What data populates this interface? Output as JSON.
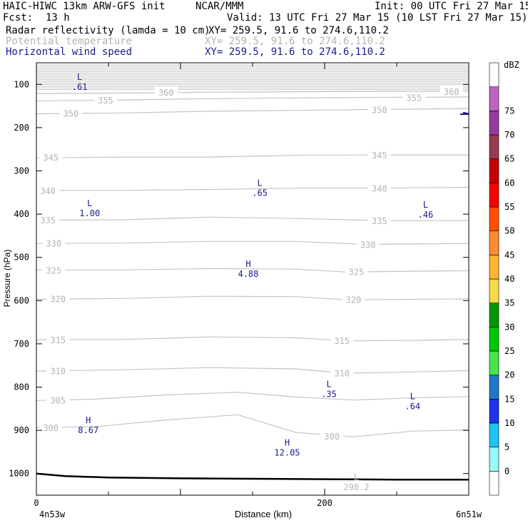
{
  "header": {
    "model": "HAIC-HIWC 13km ARW-GFS init",
    "org": "NCAR/MMM",
    "init": "Init: 00 UTC Fri 27 Mar 15",
    "fcst_label": "Fcst:",
    "fcst_value": "13 h",
    "valid": "Valid: 13 UTC Fri 27 Mar 15 (10 LST Fri 27 Mar 15)",
    "fields": [
      {
        "name": "Radar reflectivity (lamda = 10 cm)",
        "xy": "XY= 259.5, 91.6 to 274.6,110.2",
        "color": "#000000"
      },
      {
        "name": "Potential temperature",
        "xy": "XY= 259.5, 91.6 to 274.6,110.2",
        "color": "#b4b4b4"
      },
      {
        "name": "Horizontal wind speed",
        "xy": "XY= 259.5, 91.6 to 274.6,110.2",
        "color": "#1a1a8c"
      }
    ]
  },
  "chart_data": {
    "type": "cross-section contour",
    "xlabel": "Distance (km)",
    "ylabel": "Pressure (hPa)",
    "xlim": [
      0,
      300
    ],
    "ylim": [
      1050,
      50
    ],
    "x_ticks": [
      0,
      200
    ],
    "y_ticks": [
      100,
      200,
      300,
      400,
      500,
      600,
      700,
      800,
      900,
      1000
    ],
    "x_start_label": "4n53w",
    "x_end_label": "6n51w",
    "terrain_surface": [
      [
        0,
        1000
      ],
      [
        20,
        1006
      ],
      [
        50,
        1009
      ],
      [
        100,
        1011
      ],
      [
        150,
        1012
      ],
      [
        200,
        1013
      ],
      [
        250,
        1014
      ],
      [
        300,
        1014
      ]
    ],
    "theta_contours": [
      {
        "label": "300",
        "points": [
          [
            0,
            893
          ],
          [
            40,
            892
          ],
          [
            90,
            876
          ],
          [
            140,
            864
          ],
          [
            180,
            905
          ],
          [
            220,
            915
          ],
          [
            260,
            902
          ],
          [
            300,
            899
          ]
        ],
        "label_at": [
          [
            10,
            893
          ],
          [
            205,
            913
          ]
        ]
      },
      {
        "label": "305",
        "points": [
          [
            0,
            831
          ],
          [
            40,
            828
          ],
          [
            90,
            818
          ],
          [
            140,
            812
          ],
          [
            180,
            823
          ],
          [
            220,
            830
          ],
          [
            260,
            825
          ],
          [
            300,
            822
          ]
        ],
        "label_at": [
          [
            15,
            830
          ]
        ]
      },
      {
        "label": "310",
        "points": [
          [
            0,
            763
          ],
          [
            60,
            760
          ],
          [
            120,
            755
          ],
          [
            180,
            758
          ],
          [
            215,
            768
          ],
          [
            260,
            765
          ],
          [
            300,
            762
          ]
        ],
        "label_at": [
          [
            15,
            762
          ],
          [
            212,
            767
          ]
        ]
      },
      {
        "label": "315",
        "points": [
          [
            0,
            690
          ],
          [
            60,
            690
          ],
          [
            120,
            684
          ],
          [
            180,
            686
          ],
          [
            215,
            693
          ],
          [
            260,
            692
          ],
          [
            300,
            690
          ]
        ],
        "label_at": [
          [
            15,
            690
          ],
          [
            212,
            692
          ]
        ]
      },
      {
        "label": "320",
        "points": [
          [
            0,
            597
          ],
          [
            60,
            595
          ],
          [
            120,
            590
          ],
          [
            180,
            591
          ],
          [
            215,
            598
          ],
          [
            260,
            597
          ],
          [
            300,
            596
          ]
        ],
        "label_at": [
          [
            15,
            595
          ],
          [
            220,
            597
          ]
        ]
      },
      {
        "label": "325",
        "points": [
          [
            0,
            529
          ],
          [
            60,
            529
          ],
          [
            120,
            526
          ],
          [
            180,
            527
          ],
          [
            215,
            534
          ],
          [
            260,
            532
          ],
          [
            300,
            531
          ]
        ],
        "label_at": [
          [
            12,
            529
          ],
          [
            222,
            533
          ]
        ]
      },
      {
        "label": "330",
        "points": [
          [
            0,
            468
          ],
          [
            60,
            467
          ],
          [
            120,
            463
          ],
          [
            180,
            463
          ],
          [
            230,
            470
          ],
          [
            260,
            469
          ],
          [
            300,
            468
          ]
        ],
        "label_at": [
          [
            12,
            467
          ],
          [
            230,
            470
          ]
        ]
      },
      {
        "label": "335",
        "points": [
          [
            0,
            414
          ],
          [
            60,
            413
          ],
          [
            120,
            407
          ],
          [
            180,
            410
          ],
          [
            240,
            415
          ],
          [
            300,
            415
          ]
        ],
        "label_at": [
          [
            8,
            413
          ],
          [
            238,
            415
          ]
        ]
      },
      {
        "label": "340",
        "points": [
          [
            0,
            345
          ],
          [
            60,
            345
          ],
          [
            120,
            343
          ],
          [
            180,
            340
          ],
          [
            235,
            340
          ],
          [
            300,
            338
          ]
        ],
        "label_at": [
          [
            8,
            345
          ],
          [
            238,
            340
          ]
        ]
      },
      {
        "label": "345",
        "points": [
          [
            0,
            270
          ],
          [
            60,
            268
          ],
          [
            120,
            268
          ],
          [
            180,
            264
          ],
          [
            235,
            263
          ],
          [
            300,
            263
          ]
        ],
        "label_at": [
          [
            10,
            268
          ],
          [
            238,
            263
          ]
        ]
      },
      {
        "label": "350",
        "points": [
          [
            0,
            168
          ],
          [
            60,
            166
          ],
          [
            120,
            162
          ],
          [
            180,
            160
          ],
          [
            235,
            158
          ],
          [
            300,
            156
          ]
        ],
        "label_at": [
          [
            24,
            166
          ],
          [
            238,
            158
          ]
        ]
      },
      {
        "label": "355",
        "points": [
          [
            0,
            138
          ],
          [
            60,
            136
          ],
          [
            120,
            133
          ],
          [
            180,
            131
          ],
          [
            235,
            130
          ],
          [
            300,
            129
          ]
        ],
        "label_at": [
          [
            48,
            136
          ],
          [
            262,
            130
          ]
        ]
      },
      {
        "label": "360",
        "points": [
          [
            0,
            121
          ],
          [
            60,
            120
          ],
          [
            120,
            118
          ],
          [
            180,
            117
          ],
          [
            235,
            116
          ],
          [
            300,
            116
          ]
        ],
        "label_at": [
          [
            90,
            118
          ],
          [
            288,
            116
          ]
        ]
      }
    ],
    "theta_stack_top": {
      "from": 55,
      "to": 112,
      "count": 16
    },
    "wind_contour": {
      "points": [
        [
          296,
          165
        ],
        [
          300,
          168
        ]
      ]
    },
    "extrema": [
      {
        "type": "L",
        "value": ".61",
        "x": 30,
        "p": 90
      },
      {
        "type": "L",
        "value": "1.00",
        "x": 37,
        "p": 382
      },
      {
        "type": "L",
        "value": ".65",
        "x": 155,
        "p": 335
      },
      {
        "type": "L",
        "value": ".46",
        "x": 270,
        "p": 385
      },
      {
        "type": "H",
        "value": "4.88",
        "x": 147,
        "p": 522
      },
      {
        "type": "L",
        "value": ".35",
        "x": 203,
        "p": 800
      },
      {
        "type": "L",
        "value": ".64",
        "x": 261,
        "p": 828
      },
      {
        "type": "H",
        "value": "8.67",
        "x": 36,
        "p": 883
      },
      {
        "type": "H",
        "value": "12.05",
        "x": 174,
        "p": 935
      },
      {
        "type": "L",
        "value": "298.2",
        "x": 222,
        "p": 1015,
        "color": "#b4b4b4"
      }
    ],
    "colorbar": {
      "unit": "dBZ",
      "levels": [
        "0",
        "5",
        "10",
        "15",
        "20",
        "25",
        "30",
        "35",
        "40",
        "45",
        "50",
        "55",
        "60",
        "65",
        "70",
        "75"
      ],
      "colors": [
        "#ffffff",
        "#96fafa",
        "#1ec4f4",
        "#1e32ea",
        "#1e78c8",
        "#46e646",
        "#00c800",
        "#009600",
        "#f5dc46",
        "#ffb432",
        "#ff8c32",
        "#ff5000",
        "#ff0000",
        "#c80000",
        "#963c50",
        "#963ca0",
        "#be64be",
        "#ffffff"
      ]
    }
  }
}
